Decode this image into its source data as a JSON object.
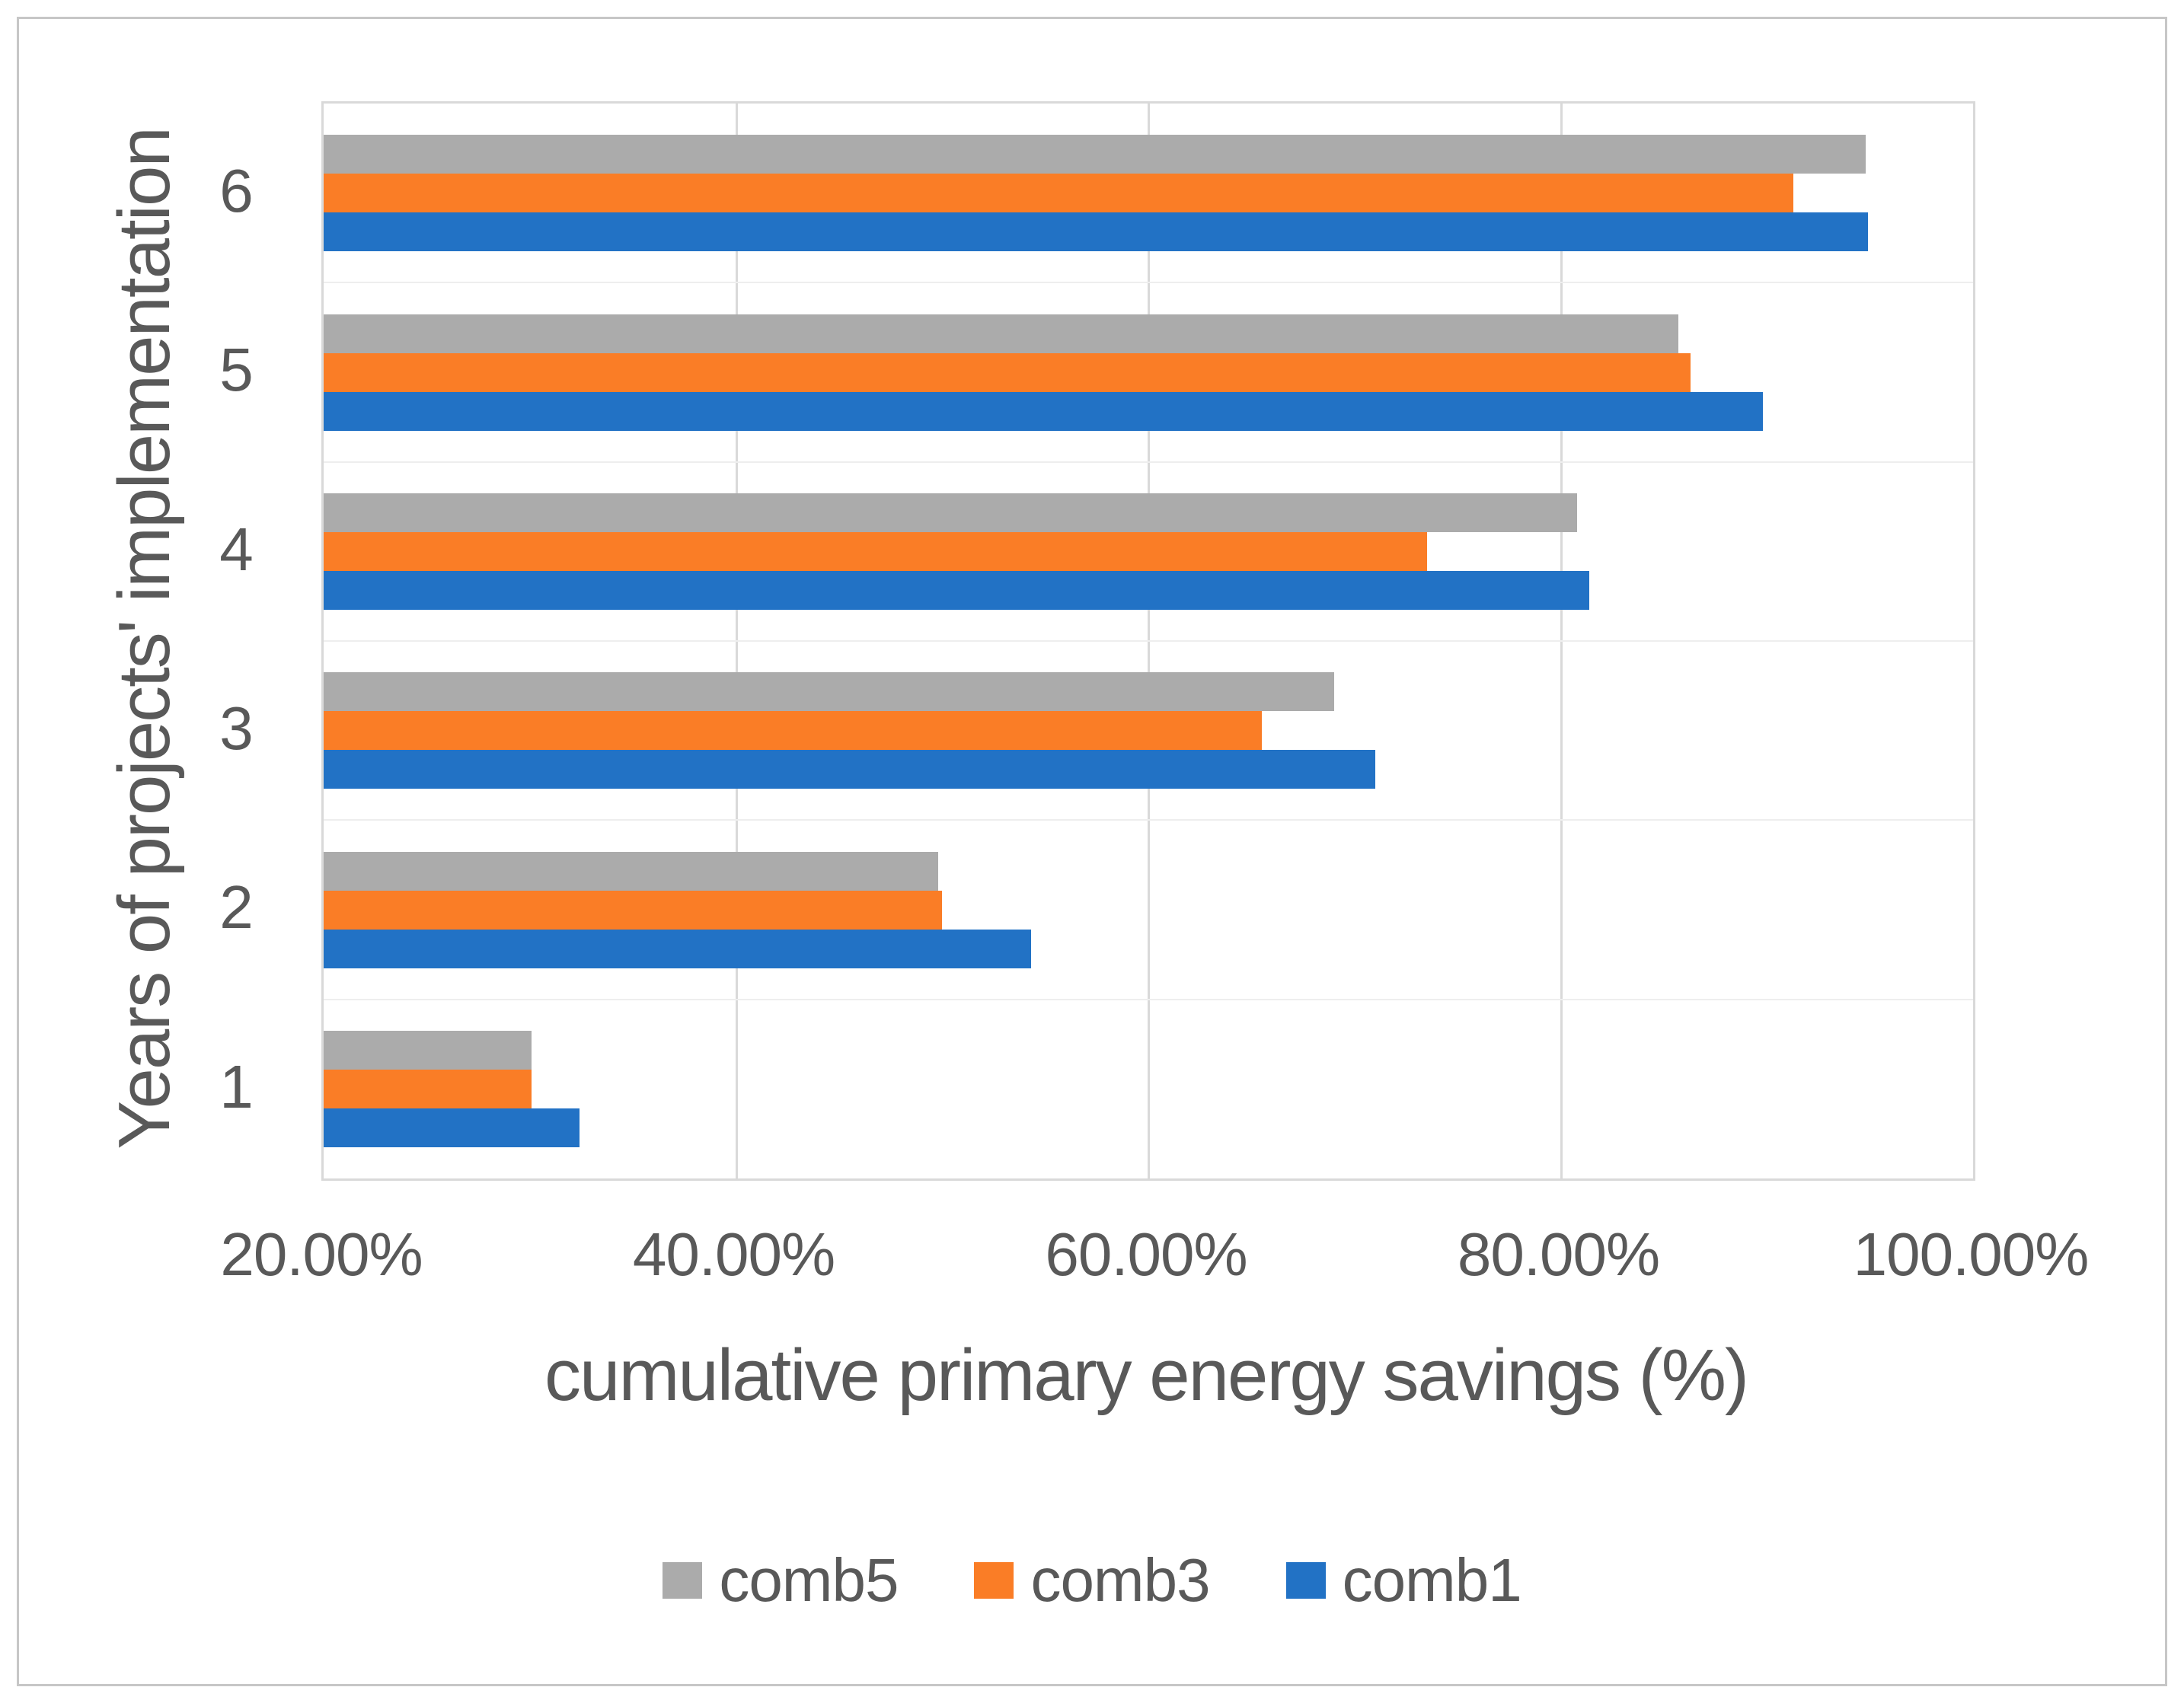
{
  "chart_data": {
    "type": "bar",
    "orientation": "horizontal",
    "title": "",
    "xlabel": "cumulative primary energy savings (%)",
    "ylabel": "Years of projects' implementation",
    "categories": [
      "1",
      "2",
      "3",
      "4",
      "5",
      "6"
    ],
    "series": [
      {
        "name": "comb5",
        "color": "#ABABAB",
        "values": [
          30.1,
          49.8,
          69.0,
          80.8,
          85.7,
          94.8
        ]
      },
      {
        "name": "comb3",
        "color": "#FA7D26",
        "values": [
          30.1,
          50.0,
          65.5,
          73.5,
          86.3,
          91.3
        ]
      },
      {
        "name": "comb1",
        "color": "#2272C5",
        "values": [
          32.4,
          54.3,
          71.0,
          81.4,
          89.8,
          94.9
        ]
      }
    ],
    "series_display_order_top_to_bottom": [
      "comb5",
      "comb3",
      "comb1"
    ],
    "x_ticks": [
      {
        "value": 20,
        "label": "20.00%"
      },
      {
        "value": 40,
        "label": "40.00%"
      },
      {
        "value": 60,
        "label": "60.00%"
      },
      {
        "value": 80,
        "label": "80.00%"
      },
      {
        "value": 100,
        "label": "100.00%"
      }
    ],
    "xlim": [
      20,
      100
    ],
    "grid": {
      "vertical": true,
      "horizontal_band_lines": true
    },
    "legend_position": "bottom",
    "legend": [
      {
        "label": "comb5",
        "color": "#ABABAB"
      },
      {
        "label": "comb3",
        "color": "#FA7D26"
      },
      {
        "label": "comb1",
        "color": "#2272C5"
      }
    ]
  },
  "colors": {
    "text": "#595959",
    "gridline": "#D9D9D9",
    "band_line": "#EEEEEE",
    "frame_border": "#C7C7C7",
    "background": "#FFFFFF"
  }
}
